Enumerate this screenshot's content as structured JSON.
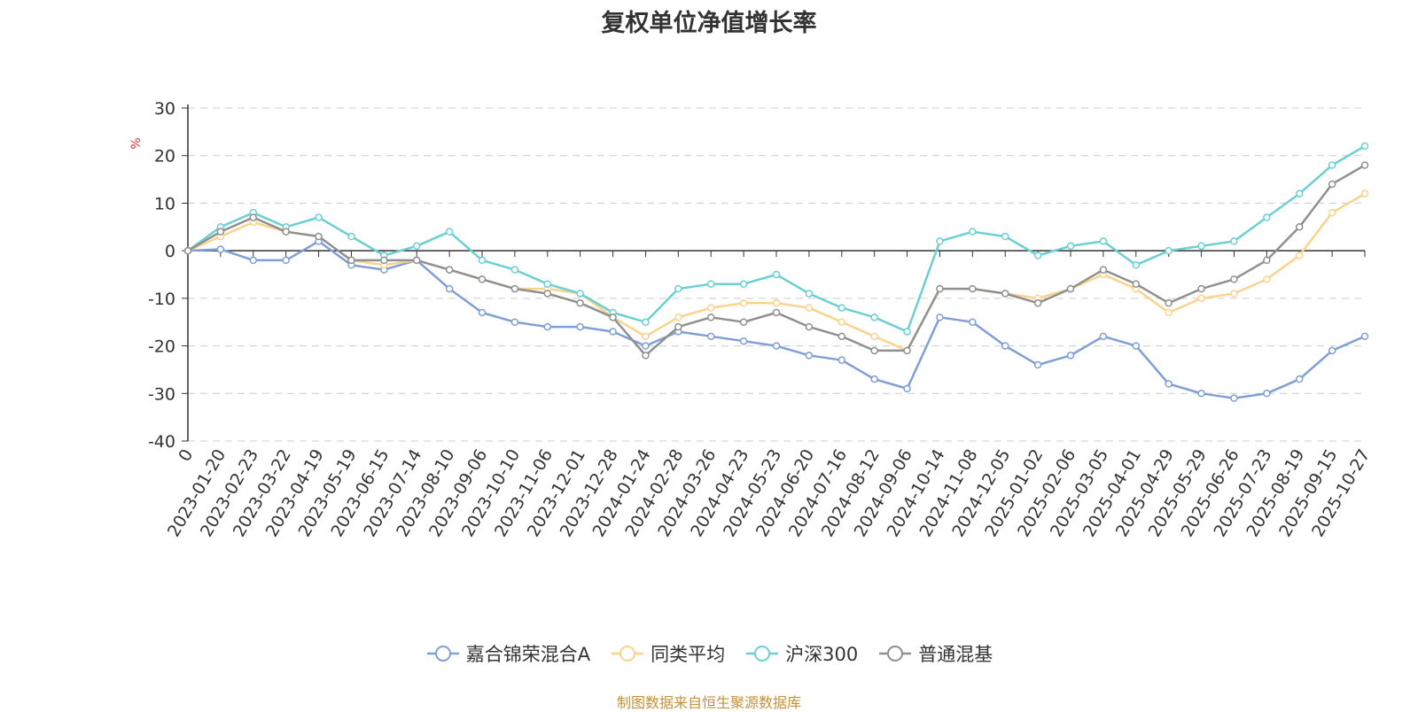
{
  "chart_data": {
    "type": "line",
    "title": "复权单位净值增长率",
    "ylabel": "%",
    "xlabel": "",
    "ylim": [
      -40,
      30
    ],
    "yticks": [
      30,
      20,
      10,
      0,
      -10,
      -20,
      -30,
      -40
    ],
    "grid": true,
    "legend_position": "bottom",
    "source": "制图数据来自恒生聚源数据库",
    "categories": [
      "0",
      "2023-01-20",
      "2023-02-23",
      "2023-03-22",
      "2023-04-19",
      "2023-05-19",
      "2023-06-15",
      "2023-07-14",
      "2023-08-10",
      "2023-09-06",
      "2023-10-10",
      "2023-11-06",
      "2023-12-01",
      "2023-12-28",
      "2024-01-24",
      "2024-02-28",
      "2024-03-26",
      "2024-04-23",
      "2024-05-23",
      "2024-06-20",
      "2024-07-16",
      "2024-08-12",
      "2024-09-06",
      "2024-10-14",
      "2024-11-08",
      "2024-12-05",
      "2025-01-02",
      "2025-02-06",
      "2025-03-05",
      "2025-04-01",
      "2025-04-29",
      "2025-05-29",
      "2025-06-26",
      "2025-07-23",
      "2025-08-19",
      "2025-09-15",
      "2025-10-27"
    ],
    "series": [
      {
        "name": "嘉合锦荣混合A",
        "color": "#7f9fd6",
        "values": [
          0,
          0.3,
          -2,
          -2,
          2,
          -3,
          -4,
          -2,
          -8,
          -13,
          -15,
          -16,
          -16,
          -17,
          -20,
          -17,
          -18,
          -19,
          -20,
          -22,
          -23,
          -27,
          -29,
          -14,
          -15,
          -20,
          -24,
          -22,
          -18,
          -20,
          -28,
          -30,
          -31,
          -30,
          -27,
          -21,
          -18
        ]
      },
      {
        "name": "同类平均",
        "color": "#fcd38c",
        "values": [
          0,
          3,
          6,
          4,
          3,
          -2,
          -3,
          -2,
          -4,
          -6,
          -8,
          -8,
          -9,
          -14,
          -18,
          -14,
          -12,
          -11,
          -11,
          -12,
          -15,
          -18,
          -21,
          -8,
          -8,
          -9,
          -10,
          -8,
          -5,
          -8,
          -13,
          -10,
          -9,
          -6,
          -1,
          8,
          12
        ]
      },
      {
        "name": "沪深300",
        "color": "#6ccfd4",
        "values": [
          0,
          5,
          8,
          5,
          7,
          3,
          -1,
          1,
          4,
          -2,
          -4,
          -7,
          -9,
          -13,
          -15,
          -8,
          -7,
          -7,
          -5,
          -9,
          -12,
          -14,
          -17,
          2,
          4,
          3,
          -1,
          1,
          2,
          -3,
          0,
          1,
          2,
          7,
          12,
          18,
          22
        ]
      },
      {
        "name": "普通混基",
        "color": "#909090",
        "values": [
          0,
          4,
          7,
          4,
          3,
          -2,
          -2,
          -2,
          -4,
          -6,
          -8,
          -9,
          -11,
          -14,
          -22,
          -16,
          -14,
          -15,
          -13,
          -16,
          -18,
          -21,
          -21,
          -8,
          -8,
          -9,
          -11,
          -8,
          -4,
          -7,
          -11,
          -8,
          -6,
          -2,
          5,
          14,
          18
        ]
      }
    ]
  }
}
